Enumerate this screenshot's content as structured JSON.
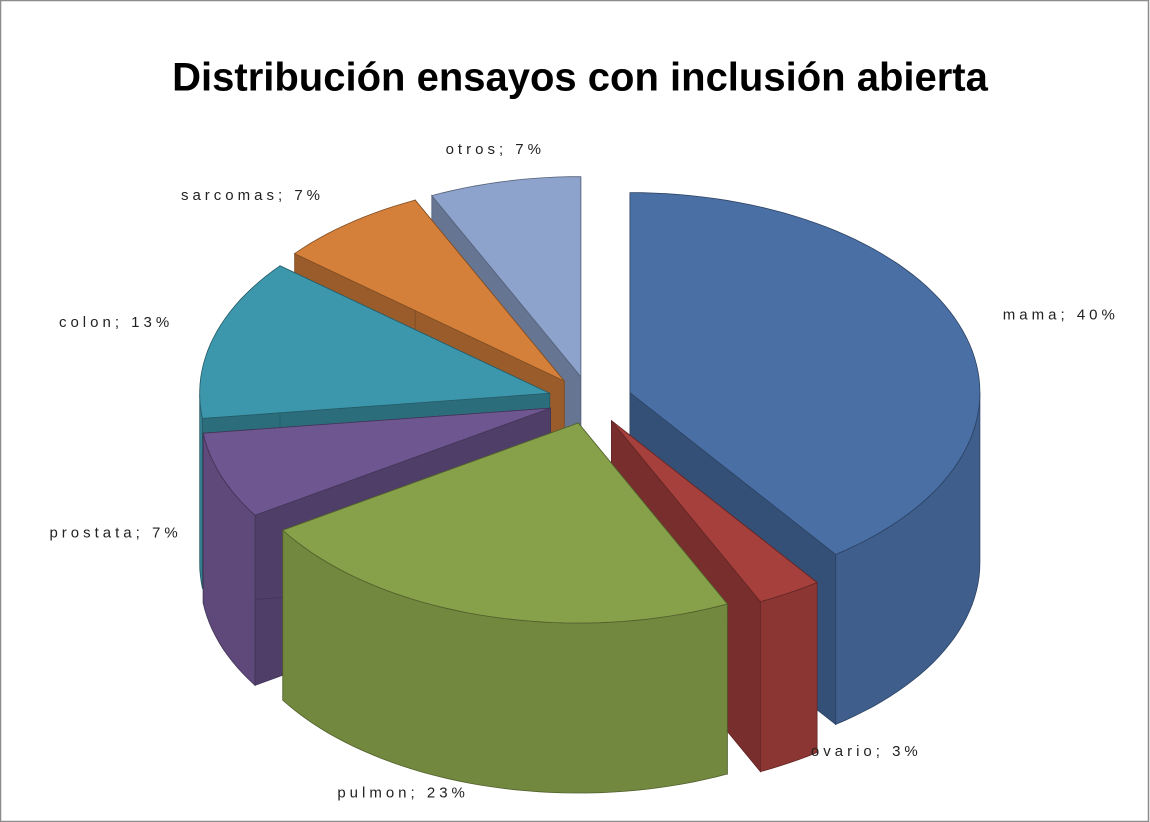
{
  "chart_data": {
    "type": "pie",
    "title": "Distribución ensayos con inclusión abierta",
    "categories": [
      "mama",
      "ovario",
      "pulmon",
      "prostata",
      "colon",
      "sarcomas",
      "otros"
    ],
    "values": [
      40,
      3,
      23,
      7,
      13,
      7,
      7
    ],
    "value_labels": [
      "40%",
      "3%",
      "23%",
      "7%",
      "13%",
      "7%",
      "7%"
    ],
    "label_separator": "; ",
    "colors": [
      "#4a6fa5",
      "#a5403d",
      "#87a04a",
      "#6e5690",
      "#3d97ac",
      "#d4803a",
      "#8ea3cb"
    ],
    "legend": false
  }
}
